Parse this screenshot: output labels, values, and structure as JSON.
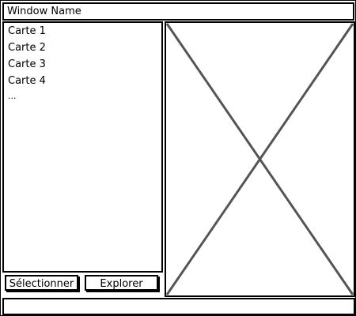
{
  "window": {
    "title": "Window Name"
  },
  "map_list": {
    "items": [
      {
        "label": "Carte 1"
      },
      {
        "label": "Carte 2"
      },
      {
        "label": "Carte 3"
      },
      {
        "label": "Carte 4"
      }
    ],
    "more_indicator": "..."
  },
  "buttons": {
    "select_label": "Sélectionner",
    "explore_label": "Explorer"
  },
  "preview": {
    "icon": "image-placeholder-icon"
  },
  "status_bar": {
    "text": ""
  }
}
